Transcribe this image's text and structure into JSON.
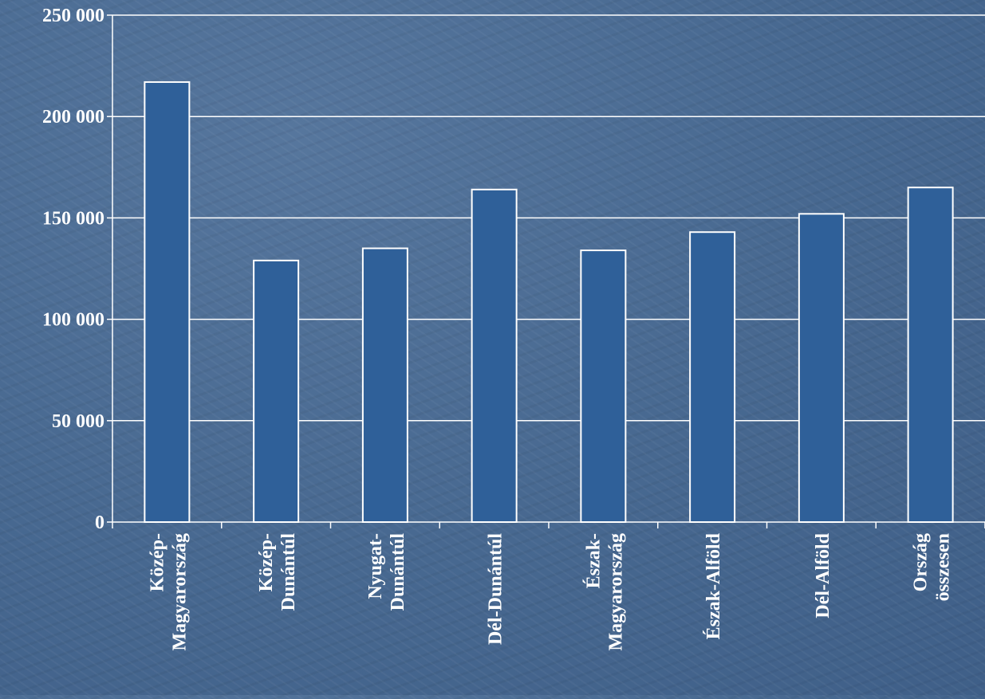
{
  "chart_data": {
    "type": "bar",
    "categories": [
      [
        "Közép-",
        "Magyarország"
      ],
      [
        "Közép-",
        "Dunántúl"
      ],
      [
        "Nyugat-",
        "Dunántúl"
      ],
      [
        "Dél-Dunántúl"
      ],
      [
        "Észak-",
        "Magyarország"
      ],
      [
        "Észak-Alföld"
      ],
      [
        "Dél-Alföld"
      ],
      [
        "Ország",
        "összesen"
      ]
    ],
    "values": [
      217000,
      129000,
      135000,
      164000,
      134000,
      143000,
      152000,
      165000
    ],
    "y_ticks": [
      "0",
      "50 000",
      "100 000",
      "150 000",
      "200 000",
      "250 000"
    ],
    "ylim": [
      0,
      250000
    ],
    "grid": true,
    "colors": {
      "bar_fill": "#2f6099",
      "bar_stroke": "#ffffff",
      "grid": "#ffffff",
      "text": "#ffffff"
    }
  }
}
